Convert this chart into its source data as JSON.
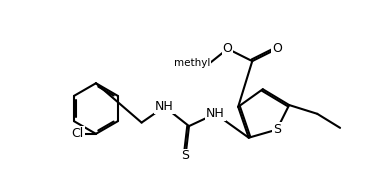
{
  "background": "#ffffff",
  "lw": 1.5,
  "fs": 9.0,
  "dbo": 0.05,
  "figsize": [
    3.71,
    1.96
  ],
  "dpi": 100,
  "xlim": [
    0.0,
    10.0
  ],
  "ylim": [
    0.0,
    5.5
  ]
}
